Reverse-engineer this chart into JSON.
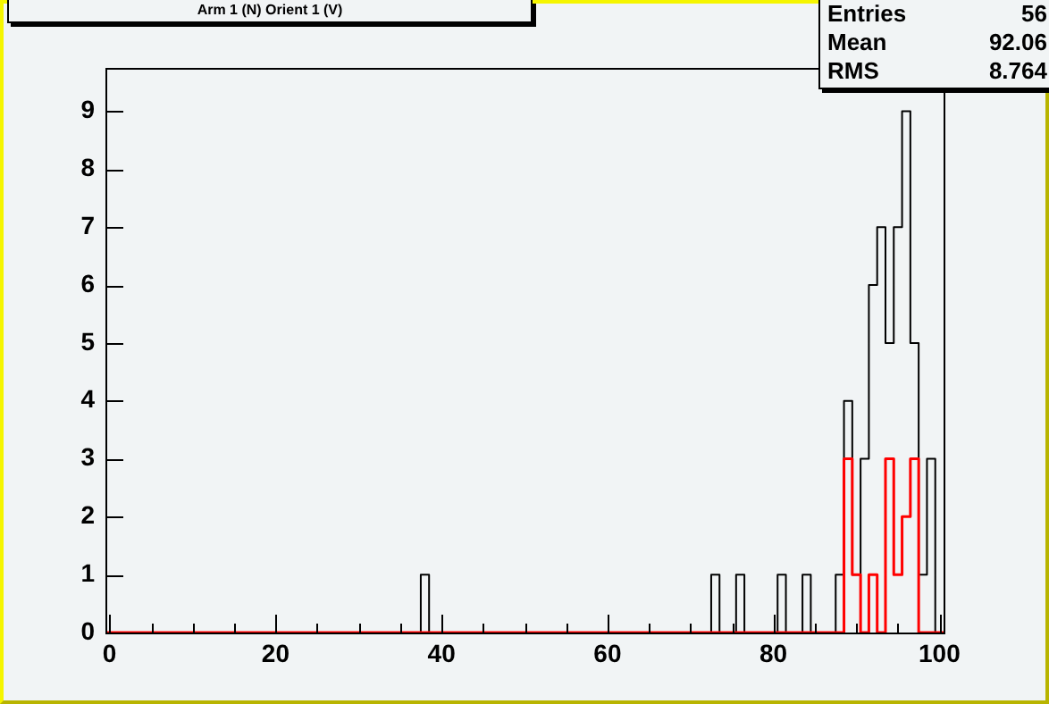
{
  "chart_data": {
    "type": "histogram",
    "title": "Arm 1 (N) Orient 1 (V)",
    "annotations": [
      "Entries 56",
      "Mean 92.06",
      "RMS 8.764"
    ],
    "bins": [
      -0.5,
      0.5,
      1.5,
      2.5,
      3.5,
      4.5,
      5.5,
      6.5,
      7.5,
      8.5,
      9.5,
      10.5,
      11.5,
      12.5,
      13.5,
      14.5,
      15.5,
      16.5,
      17.5,
      18.5,
      19.5,
      20.5,
      21.5,
      22.5,
      23.5,
      24.5,
      25.5,
      26.5,
      27.5,
      28.5,
      29.5,
      30.5,
      31.5,
      32.5,
      33.5,
      34.5,
      35.5,
      36.5,
      37.5,
      38.5,
      39.5,
      40.5,
      41.5,
      42.5,
      43.5,
      44.5,
      45.5,
      46.5,
      47.5,
      48.5,
      49.5,
      50.5,
      51.5,
      52.5,
      53.5,
      54.5,
      55.5,
      56.5,
      57.5,
      58.5,
      59.5,
      60.5,
      61.5,
      62.5,
      63.5,
      64.5,
      65.5,
      66.5,
      67.5,
      68.5,
      69.5,
      70.5,
      71.5,
      72.5,
      73.5,
      74.5,
      75.5,
      76.5,
      77.5,
      78.5,
      79.5,
      80.5,
      81.5,
      82.5,
      83.5,
      84.5,
      85.5,
      86.5,
      87.5,
      88.5,
      89.5,
      90.5,
      91.5,
      92.5,
      93.5,
      94.5,
      95.5,
      96.5,
      97.5,
      98.5,
      99.5,
      100.5
    ],
    "series": [
      {
        "color": "#000000",
        "values": [
          0,
          0,
          0,
          0,
          0,
          0,
          0,
          0,
          0,
          0,
          0,
          0,
          0,
          0,
          0,
          0,
          0,
          0,
          0,
          0,
          0,
          0,
          0,
          0,
          0,
          0,
          0,
          0,
          0,
          0,
          0,
          0,
          0,
          0,
          0,
          0,
          0,
          0,
          1,
          0,
          0,
          0,
          0,
          0,
          0,
          0,
          0,
          0,
          0,
          0,
          0,
          0,
          0,
          0,
          0,
          0,
          0,
          0,
          0,
          0,
          0,
          0,
          0,
          0,
          0,
          0,
          0,
          0,
          0,
          0,
          0,
          0,
          0,
          1,
          0,
          0,
          1,
          0,
          0,
          0,
          0,
          1,
          0,
          0,
          1,
          0,
          0,
          0,
          1,
          4,
          1,
          3,
          6,
          7,
          5,
          7,
          9,
          5,
          1,
          3,
          0
        ]
      },
      {
        "color": "#ff0000",
        "values": [
          0,
          0,
          0,
          0,
          0,
          0,
          0,
          0,
          0,
          0,
          0,
          0,
          0,
          0,
          0,
          0,
          0,
          0,
          0,
          0,
          0,
          0,
          0,
          0,
          0,
          0,
          0,
          0,
          0,
          0,
          0,
          0,
          0,
          0,
          0,
          0,
          0,
          0,
          0,
          0,
          0,
          0,
          0,
          0,
          0,
          0,
          0,
          0,
          0,
          0,
          0,
          0,
          0,
          0,
          0,
          0,
          0,
          0,
          0,
          0,
          0,
          0,
          0,
          0,
          0,
          0,
          0,
          0,
          0,
          0,
          0,
          0,
          0,
          0,
          0,
          0,
          0,
          0,
          0,
          0,
          0,
          0,
          0,
          0,
          0,
          0,
          0,
          0,
          0,
          3,
          1,
          0,
          1,
          0,
          3,
          1,
          2,
          3,
          0,
          0,
          0
        ]
      }
    ],
    "xlim": [
      -0.5,
      100.5
    ],
    "xticks": [
      0,
      {
        "value": 5,
        "label": null
      },
      {
        "value": 10,
        "label": null
      },
      {
        "value": 15,
        "label": null
      },
      20,
      {
        "value": 25,
        "label": null
      },
      {
        "value": 30,
        "label": null
      },
      {
        "value": 35,
        "label": null
      },
      40,
      {
        "value": 45,
        "label": null
      },
      {
        "value": 50,
        "label": null
      },
      {
        "value": 55,
        "label": null
      },
      60,
      {
        "value": 65,
        "label": null
      },
      {
        "value": 70,
        "label": null
      },
      {
        "value": 75,
        "label": null
      },
      80,
      {
        "value": 85,
        "label": null
      },
      {
        "value": 90,
        "label": null
      },
      {
        "value": 95,
        "label": null
      },
      100
    ],
    "ylim": [
      0,
      9.75
    ],
    "yticks": [
      0,
      1,
      2,
      3,
      4,
      5,
      6,
      7,
      8,
      9
    ],
    "grid": false,
    "legend": false
  }
}
